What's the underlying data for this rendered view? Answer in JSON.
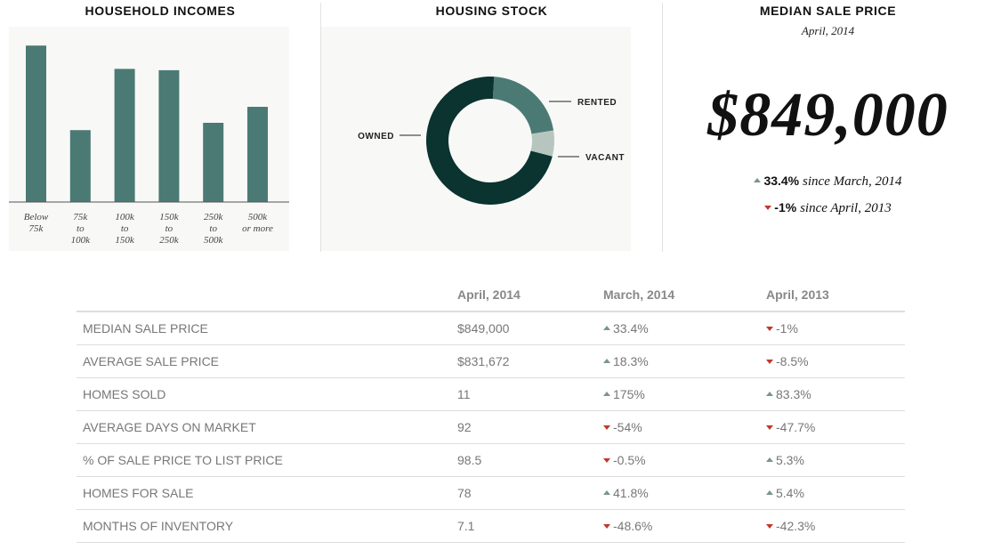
{
  "incomes": {
    "title": "HOUSEHOLD INCOMES",
    "bar_color": "#4a7a73"
  },
  "housing": {
    "title": "HOUSING STOCK",
    "colors": [
      "#0b332f",
      "#4b7a74",
      "#b6c6bf"
    ]
  },
  "median": {
    "title": "MEDIAN SALE PRICE",
    "subtitle": "April, 2014",
    "value": "$849,000",
    "changes": [
      {
        "direction": "up",
        "pct": "33.4%",
        "text": "since March, 2014"
      },
      {
        "direction": "down",
        "pct": "-1%",
        "text": "since April, 2013"
      }
    ],
    "up_color": "#7a9590",
    "down_color": "#c0392b"
  },
  "table": {
    "headers": [
      "",
      "April, 2014",
      "March, 2014",
      "April, 2013"
    ],
    "rows": [
      {
        "metric": "MEDIAN SALE PRICE",
        "current": "$849,000",
        "mom": {
          "dir": "up",
          "val": "33.4%"
        },
        "yoy": {
          "dir": "down",
          "val": "-1%"
        }
      },
      {
        "metric": "AVERAGE SALE PRICE",
        "current": "$831,672",
        "mom": {
          "dir": "up",
          "val": "18.3%"
        },
        "yoy": {
          "dir": "down",
          "val": "-8.5%"
        }
      },
      {
        "metric": "HOMES SOLD",
        "current": "11",
        "mom": {
          "dir": "up",
          "val": "175%"
        },
        "yoy": {
          "dir": "up",
          "val": "83.3%"
        }
      },
      {
        "metric": "AVERAGE DAYS ON MARKET",
        "current": "92",
        "mom": {
          "dir": "down",
          "val": "-54%"
        },
        "yoy": {
          "dir": "down",
          "val": "-47.7%"
        }
      },
      {
        "metric": "% OF SALE PRICE TO LIST PRICE",
        "current": "98.5",
        "mom": {
          "dir": "down",
          "val": "-0.5%"
        },
        "yoy": {
          "dir": "up",
          "val": "5.3%"
        }
      },
      {
        "metric": "HOMES FOR SALE",
        "current": "78",
        "mom": {
          "dir": "up",
          "val": "41.8%"
        },
        "yoy": {
          "dir": "up",
          "val": "5.4%"
        }
      },
      {
        "metric": "MONTHS OF INVENTORY",
        "current": "7.1",
        "mom": {
          "dir": "down",
          "val": "-48.6%"
        },
        "yoy": {
          "dir": "down",
          "val": "-42.3%"
        }
      }
    ]
  },
  "chart_data": [
    {
      "type": "bar",
      "title": "HOUSEHOLD INCOMES",
      "categories": [
        [
          "Below",
          "75k"
        ],
        [
          "75k",
          "to",
          "100k"
        ],
        [
          "100k",
          "to",
          "150k"
        ],
        [
          "150k",
          "to",
          "250k"
        ],
        [
          "250k",
          "to",
          "500k"
        ],
        [
          "500k",
          "or more"
        ]
      ],
      "values": [
        23.5,
        10.8,
        20.0,
        19.8,
        11.9,
        14.3
      ],
      "ylim": [
        0,
        25
      ],
      "grid": false
    },
    {
      "type": "pie",
      "title": "HOUSING STOCK",
      "labels": [
        "OWNED",
        "RENTED",
        "VACANT"
      ],
      "values": [
        72,
        21.5,
        6.5
      ],
      "donut": true
    }
  ]
}
